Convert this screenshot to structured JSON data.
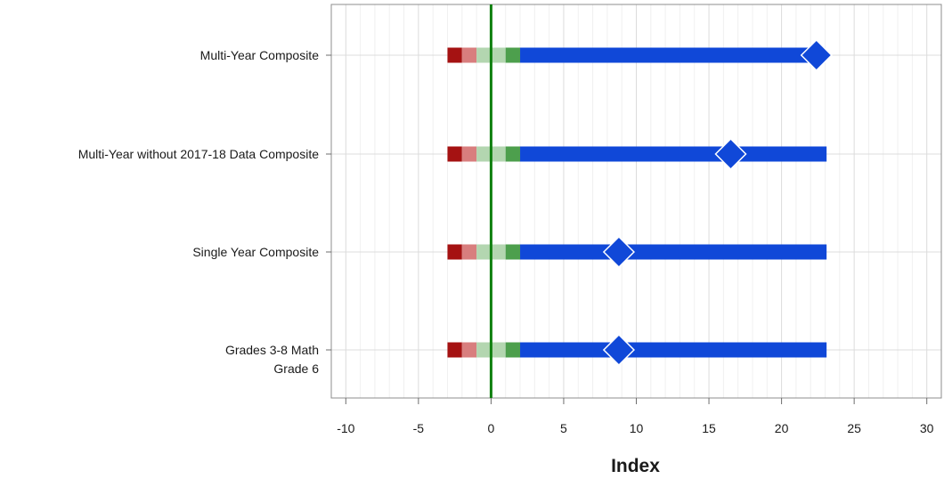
{
  "chart_data": {
    "type": "bar",
    "orientation": "horizontal",
    "title": "",
    "xlabel": "Index",
    "ylabel": "",
    "xlim": [
      -11,
      31
    ],
    "x_ticks": [
      -10,
      -5,
      0,
      5,
      10,
      15,
      20,
      25,
      30
    ],
    "x_tick_labels": [
      "-10",
      "-5",
      "0",
      "5",
      "10",
      "15",
      "20",
      "25",
      "30"
    ],
    "grid": true,
    "legend": "none",
    "reference_line": 0,
    "categories": [
      {
        "lines": [
          "Multi-Year Composite"
        ],
        "index": 22.4,
        "bar_end": 22.4
      },
      {
        "lines": [
          "Multi-Year without 2017-18 Data Composite"
        ],
        "index": 16.5,
        "bar_end": 23.1
      },
      {
        "lines": [
          "Single Year Composite"
        ],
        "index": 8.8,
        "bar_end": 23.1
      },
      {
        "lines": [
          "Grades 3-8 Math",
          "Grade 6"
        ],
        "index": 8.8,
        "bar_end": 23.1
      }
    ],
    "bands": [
      {
        "from": -3,
        "to": -2,
        "color": "#a51212"
      },
      {
        "from": -2,
        "to": -1,
        "color": "#d87e7e"
      },
      {
        "from": -1,
        "to": 1,
        "color": "#b3d6b0"
      },
      {
        "from": 1,
        "to": 2,
        "color": "#4d9f4d"
      }
    ],
    "bar_color": "#1048d8",
    "marker_color": "#1048d8",
    "zero_line_color": "#108010"
  }
}
